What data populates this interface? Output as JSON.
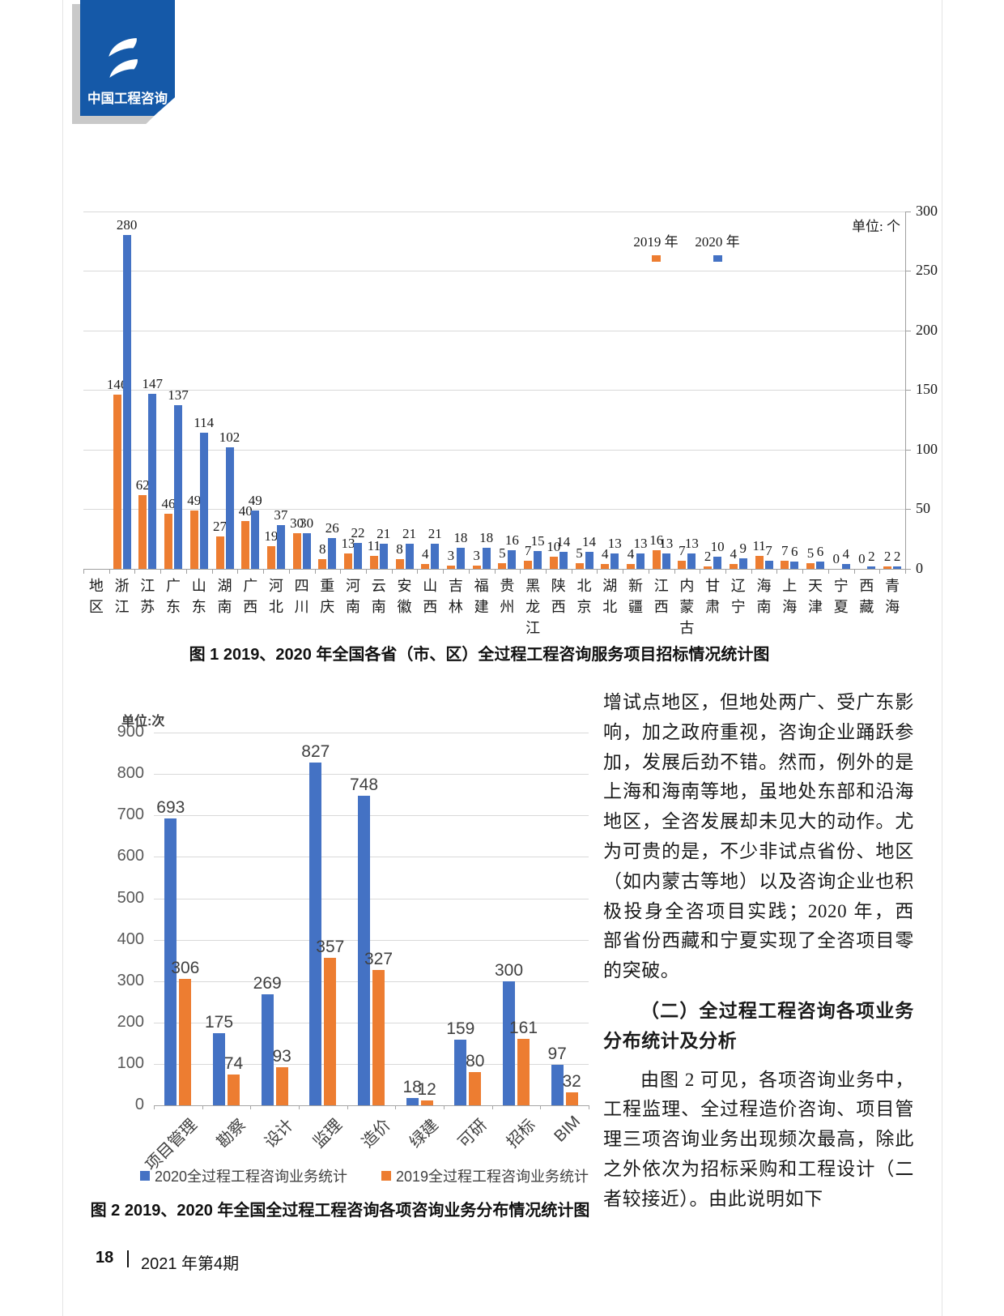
{
  "logo": {
    "brand": "中国工程咨询"
  },
  "chart_data": [
    {
      "type": "bar",
      "title": "图 1 2019、2020 年全国各省（市、区）全过程工程咨询服务项目招标情况统计图",
      "unit": "单位: 个",
      "axis_title": "地区",
      "ylim": [
        0,
        300
      ],
      "yticks": [
        300,
        250,
        200,
        150,
        100,
        50,
        0
      ],
      "grid": true,
      "legend_position": "top-inside",
      "categories": [
        "浙江",
        "江苏",
        "广东",
        "山东",
        "湖南",
        "广西",
        "河北",
        "四川",
        "重庆",
        "河南",
        "云南",
        "安徽",
        "山西",
        "吉林",
        "福建",
        "贵州",
        "黑龙江",
        "陕西",
        "北京",
        "湖北",
        "新疆",
        "江西",
        "内蒙古",
        "甘肃",
        "辽宁",
        "海南",
        "上海",
        "天津",
        "宁夏",
        "西藏",
        "青海"
      ],
      "series": [
        {
          "name": "2019 年",
          "color": "#ED7D31",
          "values": [
            146,
            62,
            46,
            49,
            27,
            40,
            19,
            30,
            8,
            13,
            11,
            8,
            4,
            3,
            3,
            5,
            7,
            10,
            5,
            4,
            4,
            16,
            7,
            2,
            4,
            11,
            7,
            5,
            0,
            0,
            2
          ]
        },
        {
          "name": "2020 年",
          "color": "#4472C4",
          "values": [
            280,
            147,
            137,
            114,
            102,
            49,
            37,
            30,
            26,
            22,
            21,
            21,
            21,
            18,
            18,
            16,
            15,
            14,
            14,
            13,
            13,
            13,
            13,
            10,
            9,
            7,
            6,
            6,
            4,
            2,
            2
          ]
        }
      ]
    },
    {
      "type": "bar",
      "title": "图 2 2019、2020 年全国全过程工程咨询各项咨询业务分布情况统计图",
      "unit": "单位:次",
      "ylim": [
        0,
        900
      ],
      "yticks": [
        900,
        800,
        700,
        600,
        500,
        400,
        300,
        200,
        100,
        0
      ],
      "grid": true,
      "legend_position": "bottom",
      "categories": [
        "项目管理",
        "勘察",
        "设计",
        "监理",
        "造价",
        "绿建",
        "可研",
        "招标",
        "BIM"
      ],
      "series": [
        {
          "name": "2020全过程工程咨询业务统计",
          "color": "#4472C4",
          "values": [
            693,
            175,
            269,
            827,
            748,
            18,
            159,
            300,
            97
          ]
        },
        {
          "name": "2019全过程工程咨询业务统计",
          "color": "#ED7D31",
          "values": [
            306,
            74,
            93,
            357,
            327,
            12,
            80,
            161,
            32
          ]
        }
      ]
    }
  ],
  "article": {
    "p1": "增试点地区，但地处两广、受广东影响，加之政府重视，咨询企业踊跃参加，发展后劲不错。然而，例外的是上海和海南等地，虽地处东部和沿海地区，全咨发展却未见大的动作。尤为可贵的是，不少非试点省份、地区（如内蒙古等地）以及咨询企业也积极投身全咨项目实践；2020 年，西部省份西藏和宁夏实现了全咨项目零的突破。",
    "heading": "（二）全过程工程咨询各项业务分布统计及分析",
    "p2": "由图 2 可见，各项咨询业务中，工程监理、全过程造价咨询、项目管理三项咨询业务出现频次最高，除此之外依次为招标采购和工程设计（二者较接近）。由此说明如下"
  },
  "footer": {
    "page_number": "18",
    "issue": "2021 年第4期"
  }
}
